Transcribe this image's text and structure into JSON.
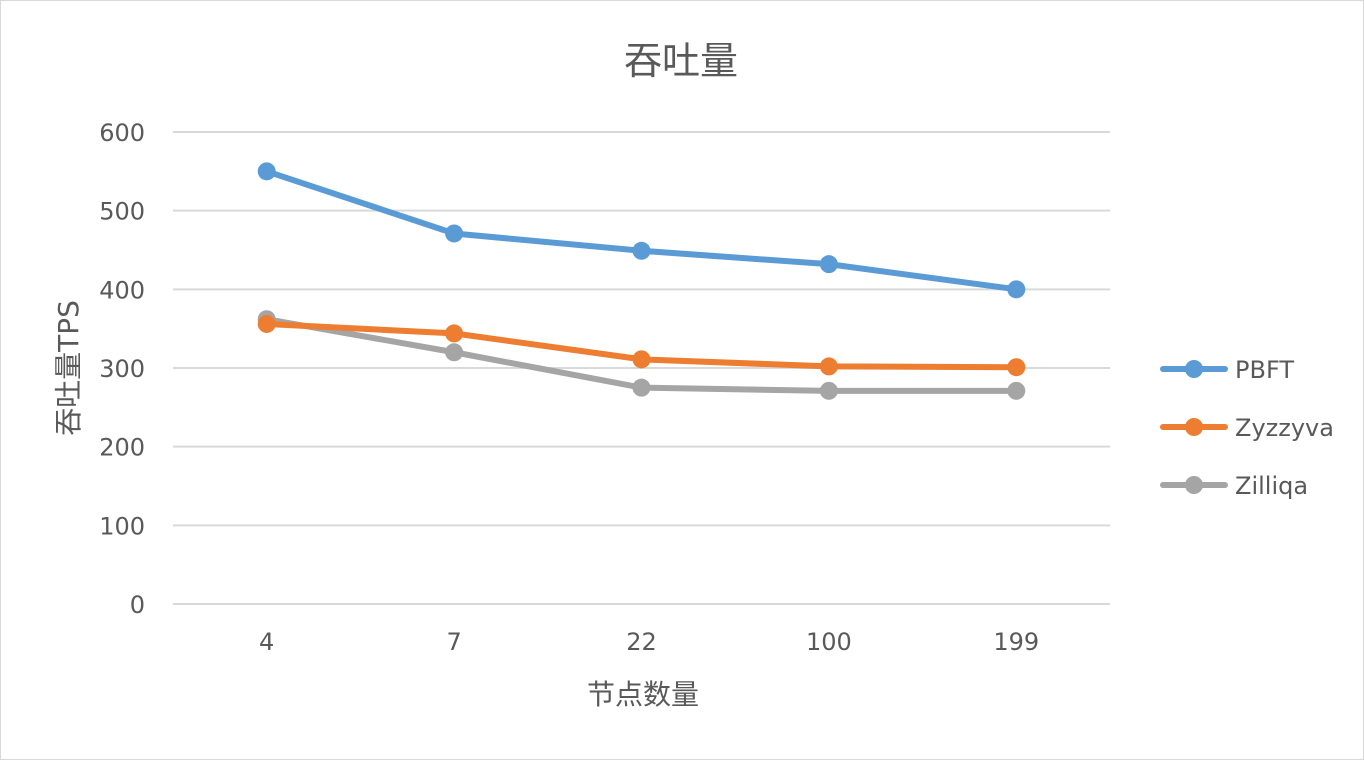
{
  "chart_data": {
    "type": "line",
    "title": "吞吐量",
    "xlabel": "节点数量",
    "ylabel": "吞吐量TPS",
    "categories": [
      "4",
      "7",
      "22",
      "100",
      "199"
    ],
    "ylim": [
      0,
      600
    ],
    "yticks": [
      0,
      100,
      200,
      300,
      400,
      500,
      600
    ],
    "grid": true,
    "legend_position": "right",
    "series": [
      {
        "name": "PBFT",
        "color": "#5b9bd5",
        "values": [
          550,
          471,
          449,
          432,
          400
        ]
      },
      {
        "name": "Zyzzyva",
        "color": "#ed7d31",
        "values": [
          356,
          344,
          311,
          302,
          301
        ]
      },
      {
        "name": "Zilliqa",
        "color": "#a5a5a5",
        "values": [
          362,
          320,
          275,
          271,
          271
        ]
      }
    ]
  }
}
